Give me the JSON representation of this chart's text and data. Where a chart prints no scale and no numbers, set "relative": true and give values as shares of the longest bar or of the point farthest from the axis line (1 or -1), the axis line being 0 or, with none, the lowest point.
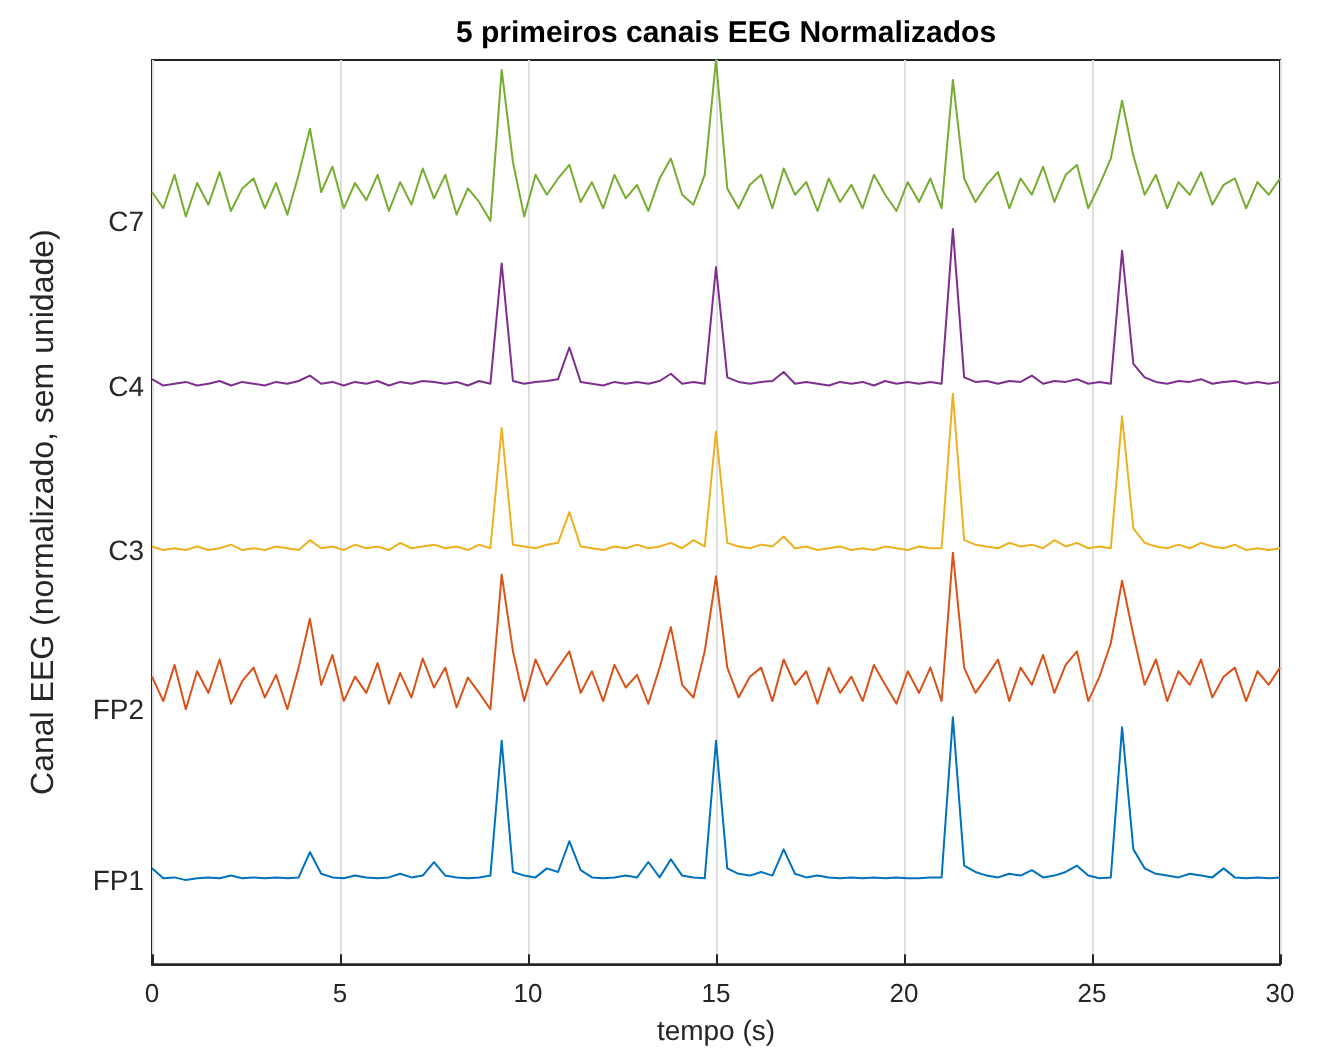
{
  "chart_data": {
    "type": "line",
    "title": "5 primeiros canais EEG Normalizados",
    "xlabel": "tempo (s)",
    "ylabel": "Canal EEG (normalizado, sem unidade)",
    "relative": true,
    "x": [
      0,
      0.3,
      0.6,
      0.9,
      1.2,
      1.5,
      1.8,
      2.1,
      2.4,
      2.7,
      3,
      3.3,
      3.6,
      3.9,
      4.2,
      4.5,
      4.8,
      5.1,
      5.4,
      5.7,
      6,
      6.3,
      6.6,
      6.9,
      7.2,
      7.5,
      7.8,
      8.1,
      8.4,
      8.7,
      9,
      9.3,
      9.6,
      9.9,
      10.2,
      10.5,
      10.8,
      11.1,
      11.4,
      11.7,
      12,
      12.3,
      12.6,
      12.9,
      13.2,
      13.5,
      13.8,
      14.1,
      14.4,
      14.7,
      15,
      15.3,
      15.6,
      15.9,
      16.2,
      16.5,
      16.8,
      17.1,
      17.4,
      17.7,
      18,
      18.3,
      18.6,
      18.9,
      19.2,
      19.5,
      19.8,
      20.1,
      20.4,
      20.7,
      21,
      21.3,
      21.6,
      21.9,
      22.2,
      22.5,
      22.8,
      23.1,
      23.4,
      23.7,
      24,
      24.3,
      24.6,
      24.9,
      25.2,
      25.5,
      25.8,
      26.1,
      26.4,
      26.7,
      27,
      27.3,
      27.6,
      27.9,
      28.2,
      28.5,
      28.8,
      29.1,
      29.4,
      29.7,
      30
    ],
    "series": [
      {
        "name": "FP1",
        "color": "#0072bd",
        "values": [
          0.106,
          0.095,
          0.096,
          0.093,
          0.095,
          0.096,
          0.095,
          0.098,
          0.095,
          0.096,
          0.095,
          0.096,
          0.095,
          0.096,
          0.124,
          0.1,
          0.096,
          0.095,
          0.098,
          0.096,
          0.095,
          0.096,
          0.1,
          0.096,
          0.098,
          0.113,
          0.098,
          0.096,
          0.095,
          0.096,
          0.098,
          0.247,
          0.102,
          0.098,
          0.096,
          0.106,
          0.102,
          0.136,
          0.104,
          0.096,
          0.095,
          0.096,
          0.098,
          0.096,
          0.113,
          0.096,
          0.116,
          0.098,
          0.096,
          0.095,
          0.247,
          0.106,
          0.1,
          0.098,
          0.102,
          0.098,
          0.127,
          0.1,
          0.096,
          0.098,
          0.096,
          0.095,
          0.096,
          0.095,
          0.096,
          0.095,
          0.096,
          0.095,
          0.095,
          0.096,
          0.096,
          0.273,
          0.109,
          0.102,
          0.098,
          0.096,
          0.1,
          0.098,
          0.104,
          0.096,
          0.098,
          0.102,
          0.109,
          0.098,
          0.095,
          0.096,
          0.262,
          0.127,
          0.106,
          0.1,
          0.098,
          0.096,
          0.1,
          0.098,
          0.096,
          0.106,
          0.096,
          0.095,
          0.096,
          0.095,
          0.096
        ]
      },
      {
        "name": "FP2",
        "color": "#d95319",
        "values": [
          0.318,
          0.291,
          0.331,
          0.282,
          0.324,
          0.3,
          0.337,
          0.288,
          0.313,
          0.328,
          0.295,
          0.32,
          0.282,
          0.328,
          0.382,
          0.309,
          0.342,
          0.291,
          0.318,
          0.3,
          0.333,
          0.288,
          0.322,
          0.295,
          0.338,
          0.306,
          0.328,
          0.284,
          0.317,
          0.3,
          0.282,
          0.431,
          0.346,
          0.291,
          0.337,
          0.309,
          0.328,
          0.346,
          0.3,
          0.324,
          0.291,
          0.331,
          0.306,
          0.32,
          0.288,
          0.328,
          0.373,
          0.309,
          0.295,
          0.346,
          0.429,
          0.328,
          0.295,
          0.318,
          0.328,
          0.291,
          0.337,
          0.309,
          0.324,
          0.288,
          0.328,
          0.3,
          0.318,
          0.291,
          0.331,
          0.309,
          0.288,
          0.324,
          0.3,
          0.328,
          0.291,
          0.455,
          0.328,
          0.3,
          0.318,
          0.337,
          0.291,
          0.328,
          0.309,
          0.342,
          0.3,
          0.331,
          0.346,
          0.291,
          0.318,
          0.355,
          0.424,
          0.364,
          0.309,
          0.337,
          0.291,
          0.324,
          0.309,
          0.337,
          0.295,
          0.318,
          0.328,
          0.291,
          0.324,
          0.309,
          0.328
        ]
      },
      {
        "name": "C3",
        "color": "#edb120",
        "values": [
          0.462,
          0.458,
          0.46,
          0.458,
          0.462,
          0.458,
          0.46,
          0.464,
          0.458,
          0.46,
          0.458,
          0.462,
          0.46,
          0.458,
          0.469,
          0.46,
          0.462,
          0.458,
          0.464,
          0.46,
          0.462,
          0.458,
          0.466,
          0.46,
          0.462,
          0.464,
          0.46,
          0.462,
          0.458,
          0.464,
          0.46,
          0.593,
          0.464,
          0.462,
          0.46,
          0.464,
          0.466,
          0.5,
          0.462,
          0.46,
          0.458,
          0.462,
          0.46,
          0.464,
          0.46,
          0.462,
          0.466,
          0.46,
          0.469,
          0.462,
          0.589,
          0.466,
          0.462,
          0.46,
          0.464,
          0.462,
          0.473,
          0.46,
          0.462,
          0.458,
          0.46,
          0.462,
          0.458,
          0.46,
          0.458,
          0.462,
          0.46,
          0.458,
          0.462,
          0.46,
          0.46,
          0.631,
          0.469,
          0.464,
          0.462,
          0.46,
          0.466,
          0.462,
          0.464,
          0.46,
          0.469,
          0.462,
          0.466,
          0.46,
          0.462,
          0.46,
          0.606,
          0.482,
          0.466,
          0.462,
          0.46,
          0.464,
          0.46,
          0.466,
          0.462,
          0.46,
          0.464,
          0.458,
          0.46,
          0.458,
          0.46
        ]
      },
      {
        "name": "C4",
        "color": "#7e2f8e",
        "values": [
          0.647,
          0.64,
          0.642,
          0.644,
          0.64,
          0.642,
          0.645,
          0.64,
          0.644,
          0.642,
          0.64,
          0.644,
          0.642,
          0.645,
          0.651,
          0.642,
          0.644,
          0.64,
          0.644,
          0.642,
          0.645,
          0.64,
          0.644,
          0.642,
          0.645,
          0.644,
          0.642,
          0.644,
          0.64,
          0.645,
          0.642,
          0.775,
          0.645,
          0.642,
          0.644,
          0.645,
          0.647,
          0.682,
          0.644,
          0.642,
          0.64,
          0.644,
          0.642,
          0.644,
          0.642,
          0.645,
          0.653,
          0.642,
          0.644,
          0.642,
          0.771,
          0.649,
          0.644,
          0.642,
          0.644,
          0.645,
          0.655,
          0.642,
          0.644,
          0.642,
          0.64,
          0.644,
          0.642,
          0.644,
          0.64,
          0.645,
          0.642,
          0.644,
          0.642,
          0.644,
          0.642,
          0.813,
          0.649,
          0.644,
          0.645,
          0.642,
          0.645,
          0.644,
          0.651,
          0.642,
          0.645,
          0.644,
          0.647,
          0.642,
          0.644,
          0.642,
          0.789,
          0.664,
          0.649,
          0.644,
          0.642,
          0.645,
          0.644,
          0.647,
          0.642,
          0.644,
          0.645,
          0.642,
          0.644,
          0.642,
          0.644
        ]
      },
      {
        "name": "C7",
        "color": "#77ac30",
        "values": [
          0.854,
          0.836,
          0.873,
          0.827,
          0.864,
          0.84,
          0.876,
          0.833,
          0.858,
          0.869,
          0.836,
          0.864,
          0.829,
          0.873,
          0.924,
          0.854,
          0.882,
          0.836,
          0.864,
          0.845,
          0.873,
          0.833,
          0.865,
          0.84,
          0.88,
          0.847,
          0.873,
          0.829,
          0.858,
          0.843,
          0.822,
          0.989,
          0.887,
          0.827,
          0.873,
          0.851,
          0.869,
          0.884,
          0.843,
          0.865,
          0.836,
          0.873,
          0.847,
          0.862,
          0.833,
          0.869,
          0.891,
          0.851,
          0.84,
          0.873,
          1.0,
          0.858,
          0.836,
          0.862,
          0.873,
          0.836,
          0.88,
          0.851,
          0.865,
          0.833,
          0.869,
          0.843,
          0.862,
          0.836,
          0.873,
          0.851,
          0.833,
          0.865,
          0.843,
          0.869,
          0.836,
          0.978,
          0.869,
          0.843,
          0.862,
          0.876,
          0.836,
          0.869,
          0.851,
          0.882,
          0.843,
          0.873,
          0.884,
          0.836,
          0.862,
          0.891,
          0.955,
          0.894,
          0.851,
          0.873,
          0.836,
          0.865,
          0.851,
          0.876,
          0.84,
          0.862,
          0.869,
          0.836,
          0.865,
          0.851,
          0.869
        ]
      }
    ],
    "xlim": [
      0,
      30
    ],
    "xticks": [
      0,
      5,
      10,
      15,
      20,
      25,
      30
    ],
    "grid": "x",
    "legend": false,
    "marker": "none",
    "line_style": "solid"
  }
}
